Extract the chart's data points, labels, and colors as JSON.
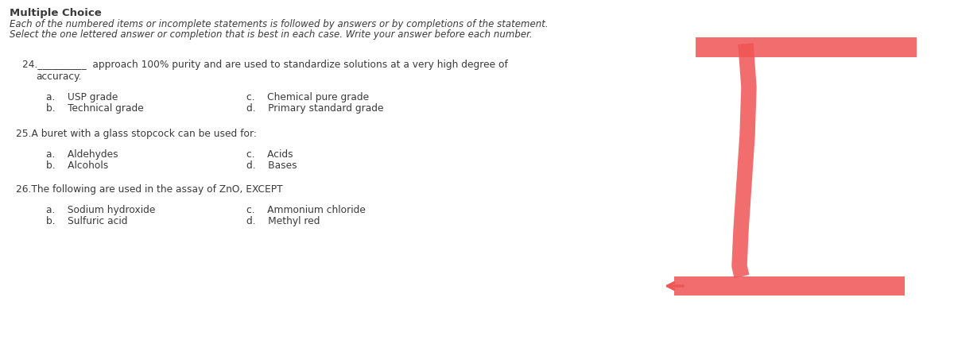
{
  "bg_color": "#ffffff",
  "title": "Multiple Choice",
  "sub1": "Each of the numbered items or incomplete statements is followed by answers or by completions of the statement.",
  "sub2": "Select the one lettered answer or completion that is best in each case. Write your answer before each number.",
  "q24_main": "24.__________  approach 100% purity and are used to standardize solutions at a very high degree of",
  "q24_cont": "accuracy.",
  "q24_a": "a.    USP grade",
  "q24_b": "b.    Technical grade",
  "q24_c": "c.    Chemical pure grade",
  "q24_d": "d.    Primary standard grade",
  "q25_main": "25.A buret with a glass stopcock can be used for:",
  "q25_a": "a.    Aldehydes",
  "q25_b": "b.    Alcohols",
  "q25_c": "c.    Acids",
  "q25_d": "d.    Bases",
  "q26_main": "26.The following are used in the assay of ZnO, EXCEPT",
  "q26_a": "a.    Sodium hydroxide",
  "q26_b": "b.    Sulfuric acid",
  "q26_c": "c.    Ammonium chloride",
  "q26_d": "d.    Methyl red",
  "text_color": "#3a3a3a",
  "red_color": "#f05555",
  "figsize": [
    12.0,
    4.28
  ]
}
